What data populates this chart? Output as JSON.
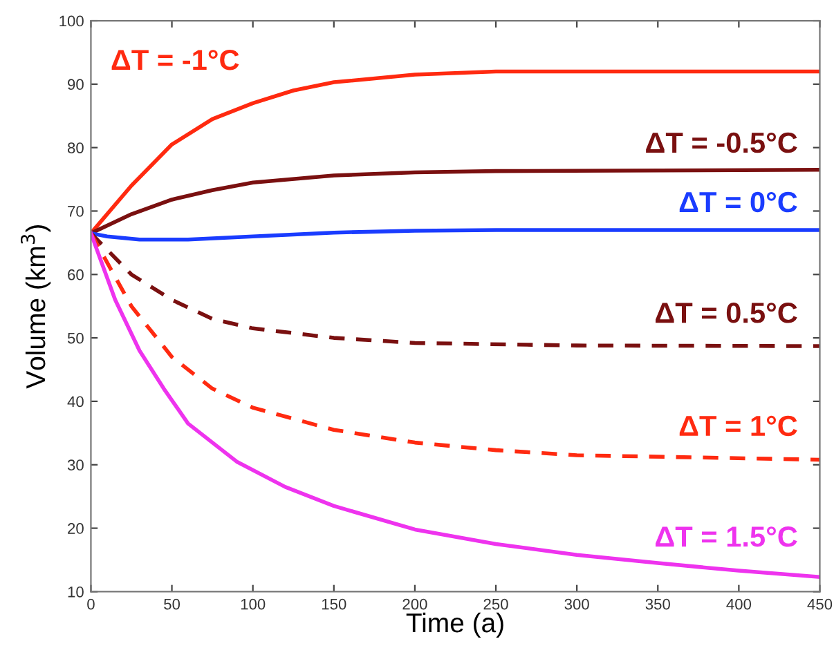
{
  "chart_data": {
    "type": "line",
    "xlabel": "Time (a)",
    "ylabel": "Volume (km$^{3}$)",
    "xlim": [
      0,
      450
    ],
    "ylim": [
      10,
      100
    ],
    "xticks": [
      0,
      50,
      100,
      150,
      200,
      250,
      300,
      350,
      400,
      450
    ],
    "yticks": [
      10,
      20,
      30,
      40,
      50,
      60,
      70,
      80,
      90,
      100
    ],
    "grid": false,
    "legend": false,
    "series": [
      {
        "name": "ΔT = -1°C",
        "color": "#ff2a10",
        "line_style": "solid",
        "x": [
          0,
          25,
          50,
          75,
          100,
          125,
          150,
          200,
          250,
          300,
          450
        ],
        "values": [
          66.5,
          74,
          80.5,
          84.5,
          87,
          89,
          90.3,
          91.5,
          92,
          92,
          92
        ]
      },
      {
        "name": "ΔT = -0.5°C",
        "color": "#7a1010",
        "line_style": "solid",
        "x": [
          0,
          25,
          50,
          75,
          100,
          150,
          200,
          250,
          450
        ],
        "values": [
          66.5,
          69.5,
          71.8,
          73.3,
          74.5,
          75.6,
          76.1,
          76.3,
          76.5
        ]
      },
      {
        "name": "ΔT = 0°C",
        "color": "#1a3cff",
        "line_style": "solid",
        "x": [
          0,
          10,
          30,
          60,
          100,
          150,
          200,
          250,
          450
        ],
        "values": [
          66.5,
          66,
          65.5,
          65.5,
          66,
          66.6,
          66.9,
          67,
          67
        ]
      },
      {
        "name": "ΔT = 0.5°C",
        "color": "#7a1010",
        "line_style": "dashed",
        "x": [
          0,
          25,
          50,
          75,
          100,
          150,
          200,
          300,
          450
        ],
        "values": [
          66.5,
          60,
          56,
          53,
          51.5,
          50,
          49.2,
          48.8,
          48.7
        ]
      },
      {
        "name": "ΔT = 1°C",
        "color": "#ff2a10",
        "line_style": "dashed",
        "x": [
          0,
          25,
          50,
          75,
          100,
          150,
          200,
          250,
          300,
          450
        ],
        "values": [
          66.5,
          55,
          47,
          42,
          39,
          35.5,
          33.5,
          32.3,
          31.5,
          30.8
        ]
      },
      {
        "name": "ΔT = 1.5°C",
        "color": "#ee33ee",
        "line_style": "solid",
        "x": [
          0,
          15,
          30,
          45,
          60,
          90,
          120,
          150,
          200,
          250,
          300,
          350,
          400,
          450
        ],
        "values": [
          66.5,
          56,
          48,
          42,
          36.5,
          30.5,
          26.5,
          23.5,
          19.8,
          17.5,
          15.8,
          14.5,
          13.3,
          12.3
        ]
      }
    ]
  }
}
